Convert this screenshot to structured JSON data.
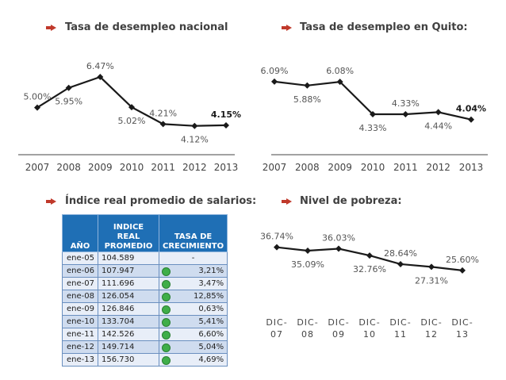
{
  "headings": {
    "nacional": "Tasa de desempleo nacional",
    "quito": "Tasa de desempleo en Quito:",
    "salarios": "Índice real promedio de salarios:",
    "pobreza": "Nivel de pobreza:"
  },
  "colors": {
    "line": "#1a1a1a",
    "bullet": "#c0392b",
    "header": "#1f6fb5",
    "dot": "#3fae49"
  },
  "chart_data": [
    {
      "id": "nacional",
      "type": "line",
      "title": "Tasa de desempleo nacional",
      "x": [
        "2007",
        "2008",
        "2009",
        "2010",
        "2011",
        "2012",
        "2013"
      ],
      "values": [
        5.0,
        5.95,
        6.47,
        5.02,
        4.21,
        4.12,
        4.15
      ],
      "labels": [
        "5.00%",
        "5.95%",
        "6.47%",
        "5.02%",
        "4.21%",
        "4.12%",
        "4.15%"
      ],
      "label_pos": [
        "above",
        "below",
        "above",
        "below",
        "above",
        "below",
        "above"
      ],
      "bold_last": true,
      "ylim": [
        3.5,
        7.5
      ],
      "grid": false
    },
    {
      "id": "quito",
      "type": "line",
      "title": "Tasa de desempleo en Quito:",
      "x": [
        "2007",
        "2008",
        "2009",
        "2010",
        "2011",
        "2012",
        "2013"
      ],
      "values": [
        6.09,
        5.88,
        6.08,
        4.33,
        4.33,
        4.44,
        4.04
      ],
      "labels": [
        "6.09%",
        "5.88%",
        "6.08%",
        "4.33%",
        "4.33%",
        "4.44%",
        "4.04%"
      ],
      "label_pos": [
        "above",
        "below",
        "above",
        "below",
        "above",
        "below",
        "above"
      ],
      "bold_last": true,
      "ylim": [
        3.0,
        7.5
      ],
      "grid": false
    },
    {
      "id": "pobreza",
      "type": "line",
      "title": "Nivel de pobreza:",
      "x": [
        "DIC-07",
        "DIC-08",
        "DIC-09",
        "DIC-10",
        "DIC-11",
        "DIC-12",
        "DIC-13"
      ],
      "values": [
        36.74,
        35.09,
        36.03,
        32.76,
        28.64,
        27.31,
        25.6
      ],
      "labels": [
        "36.74%",
        "35.09%",
        "36.03%",
        "32.76%",
        "28.64%",
        "27.31%",
        "25.60%"
      ],
      "label_pos": [
        "above",
        "below",
        "above",
        "below",
        "above",
        "below",
        "above"
      ],
      "bold_last": false,
      "ylim": [
        5,
        45
      ],
      "grid": false
    },
    {
      "id": "salarios",
      "type": "table",
      "title": "Índice real promedio de salarios:",
      "columns": [
        "AÑO",
        "INDICE REAL PROMEDIO",
        "TASA DE CRECIMIENTO"
      ],
      "rows": [
        {
          "year": "ene-05",
          "index": "104.589",
          "growth": "-",
          "indicator": false
        },
        {
          "year": "ene-06",
          "index": "107.947",
          "growth": "3,21%",
          "indicator": true
        },
        {
          "year": "ene-07",
          "index": "111.696",
          "growth": "3,47%",
          "indicator": true
        },
        {
          "year": "ene-08",
          "index": "126.054",
          "growth": "12,85%",
          "indicator": true
        },
        {
          "year": "ene-09",
          "index": "126.846",
          "growth": "0,63%",
          "indicator": true
        },
        {
          "year": "ene-10",
          "index": "133.704",
          "growth": "5,41%",
          "indicator": true
        },
        {
          "year": "ene-11",
          "index": "142.526",
          "growth": "6,60%",
          "indicator": true
        },
        {
          "year": "ene-12",
          "index": "149.714",
          "growth": "5,04%",
          "indicator": true
        },
        {
          "year": "ene-13",
          "index": "156.730",
          "growth": "4,69%",
          "indicator": true
        }
      ]
    }
  ]
}
